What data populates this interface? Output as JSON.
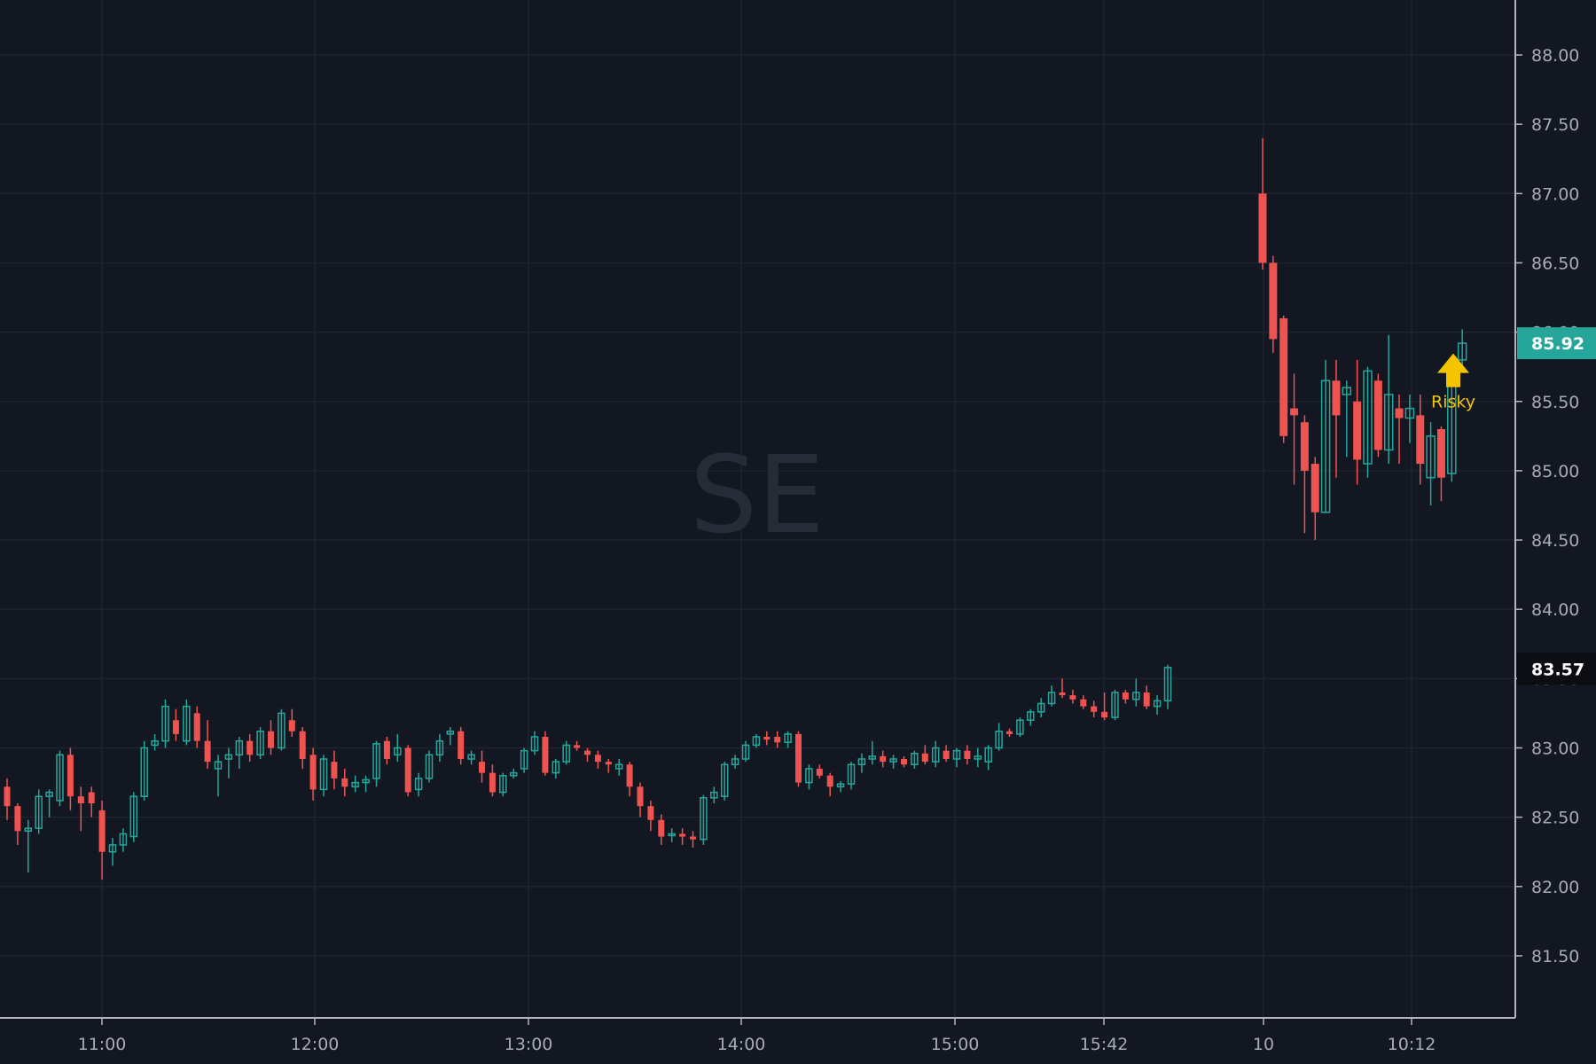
{
  "symbol_watermark": "SE",
  "colors": {
    "background": "#131722",
    "grid": "#1e2330",
    "axis_line": "#b2b5be",
    "axis_text": "#a8acb6",
    "up": "#26a69a",
    "down": "#ef5350",
    "watermark": "#262b38",
    "marker": "#f5c400"
  },
  "price_scale": {
    "labels": [
      "88.00",
      "87.50",
      "87.00",
      "86.50",
      "86.00",
      "85.50",
      "85.00",
      "84.50",
      "84.00",
      "83.50",
      "83.00",
      "82.50",
      "82.00",
      "81.50"
    ]
  },
  "time_scale": {
    "labels": [
      "11:00",
      "12:00",
      "13:00",
      "14:00",
      "15:00",
      "15:42",
      "10",
      "10:12"
    ]
  },
  "price_badges": [
    {
      "value": "85.92",
      "price": 85.92,
      "bg": "#26a69a",
      "fg": "#ffffff"
    },
    {
      "value": "83.57",
      "price": 83.57,
      "bg": "#0b0d12",
      "fg": "#ffffff"
    }
  ],
  "signal_marker": {
    "label": "Risky",
    "direction": "up",
    "price": 85.68
  },
  "chart_data": {
    "type": "candlestick",
    "title": "",
    "y_axis": {
      "min": 81.0,
      "max": 88.3,
      "gridlines": [
        88,
        87.5,
        87,
        86.5,
        86,
        85.5,
        85,
        84.5,
        84,
        83.5,
        83,
        82.5,
        82,
        81.5
      ]
    },
    "grid": true,
    "sessions": [
      {
        "name": "day1",
        "candles": [
          [
            82.72,
            82.78,
            82.48,
            82.58
          ],
          [
            82.58,
            82.6,
            82.3,
            82.4
          ],
          [
            82.4,
            82.48,
            82.1,
            82.42
          ],
          [
            82.42,
            82.7,
            82.38,
            82.65
          ],
          [
            82.65,
            82.7,
            82.5,
            82.68
          ],
          [
            82.62,
            82.98,
            82.58,
            82.95
          ],
          [
            82.95,
            83.0,
            82.55,
            82.65
          ],
          [
            82.65,
            82.72,
            82.4,
            82.6
          ],
          [
            82.68,
            82.72,
            82.5,
            82.6
          ],
          [
            82.55,
            82.62,
            82.05,
            82.25
          ],
          [
            82.25,
            82.35,
            82.15,
            82.3
          ],
          [
            82.3,
            82.42,
            82.25,
            82.38
          ],
          [
            82.36,
            82.68,
            82.32,
            82.65
          ],
          [
            82.65,
            83.05,
            82.62,
            83.0
          ],
          [
            83.02,
            83.1,
            82.98,
            83.05
          ],
          [
            83.05,
            83.35,
            83.0,
            83.3
          ],
          [
            83.2,
            83.28,
            83.05,
            83.1
          ],
          [
            83.05,
            83.35,
            83.02,
            83.3
          ],
          [
            83.25,
            83.3,
            83.0,
            83.05
          ],
          [
            83.05,
            83.2,
            82.85,
            82.9
          ],
          [
            82.85,
            82.95,
            82.65,
            82.9
          ],
          [
            82.92,
            83.0,
            82.78,
            82.95
          ],
          [
            82.95,
            83.08,
            82.85,
            83.05
          ],
          [
            83.05,
            83.1,
            82.9,
            82.95
          ],
          [
            82.95,
            83.15,
            82.92,
            83.12
          ],
          [
            83.12,
            83.2,
            82.95,
            83.0
          ],
          [
            83.0,
            83.28,
            82.98,
            83.25
          ],
          [
            83.2,
            83.28,
            83.08,
            83.12
          ],
          [
            83.12,
            83.15,
            82.85,
            82.92
          ],
          [
            82.95,
            83.0,
            82.62,
            82.7
          ],
          [
            82.7,
            82.95,
            82.65,
            82.92
          ],
          [
            82.9,
            82.98,
            82.7,
            82.78
          ],
          [
            82.78,
            82.85,
            82.65,
            82.72
          ],
          [
            82.72,
            82.8,
            82.68,
            82.75
          ],
          [
            82.75,
            82.8,
            82.68,
            82.77
          ],
          [
            82.78,
            83.05,
            82.72,
            83.03
          ],
          [
            83.05,
            83.08,
            82.88,
            82.92
          ],
          [
            82.95,
            83.1,
            82.9,
            83.0
          ],
          [
            83.0,
            83.02,
            82.65,
            82.68
          ],
          [
            82.7,
            82.82,
            82.65,
            82.78
          ],
          [
            82.78,
            82.98,
            82.75,
            82.95
          ],
          [
            82.95,
            83.1,
            82.9,
            83.05
          ],
          [
            83.1,
            83.15,
            83.02,
            83.12
          ],
          [
            83.12,
            83.15,
            82.88,
            82.92
          ],
          [
            82.92,
            82.98,
            82.88,
            82.95
          ],
          [
            82.9,
            82.98,
            82.75,
            82.82
          ],
          [
            82.82,
            82.88,
            82.65,
            82.68
          ],
          [
            82.68,
            82.82,
            82.65,
            82.8
          ],
          [
            82.8,
            82.85,
            82.78,
            82.82
          ],
          [
            82.85,
            83.0,
            82.82,
            82.98
          ],
          [
            82.98,
            83.12,
            82.95,
            83.08
          ],
          [
            83.08,
            83.12,
            82.8,
            82.82
          ],
          [
            82.82,
            82.92,
            82.78,
            82.9
          ],
          [
            82.9,
            83.05,
            82.88,
            83.02
          ],
          [
            83.02,
            83.05,
            82.98,
            83.0
          ],
          [
            82.98,
            83.0,
            82.9,
            82.95
          ],
          [
            82.95,
            82.98,
            82.85,
            82.9
          ],
          [
            82.9,
            82.92,
            82.82,
            82.88
          ],
          [
            82.85,
            82.92,
            82.8,
            82.88
          ],
          [
            82.88,
            82.9,
            82.65,
            82.72
          ],
          [
            82.72,
            82.75,
            82.5,
            82.58
          ],
          [
            82.58,
            82.62,
            82.4,
            82.48
          ],
          [
            82.48,
            82.52,
            82.3,
            82.36
          ],
          [
            82.38,
            82.42,
            82.32,
            82.38
          ],
          [
            82.38,
            82.42,
            82.3,
            82.36
          ],
          [
            82.36,
            82.4,
            82.28,
            82.34
          ],
          [
            82.34,
            82.66,
            82.3,
            82.64
          ],
          [
            82.64,
            82.72,
            82.6,
            82.68
          ],
          [
            82.65,
            82.9,
            82.62,
            82.88
          ],
          [
            82.88,
            82.95,
            82.85,
            82.92
          ],
          [
            82.92,
            83.05,
            82.9,
            83.02
          ],
          [
            83.02,
            83.1,
            83.0,
            83.08
          ],
          [
            83.08,
            83.12,
            83.02,
            83.06
          ],
          [
            83.08,
            83.12,
            83.0,
            83.04
          ],
          [
            83.04,
            83.12,
            83.0,
            83.1
          ],
          [
            83.1,
            83.12,
            82.72,
            82.75
          ],
          [
            82.75,
            82.88,
            82.7,
            82.85
          ],
          [
            82.85,
            82.88,
            82.78,
            82.8
          ],
          [
            82.8,
            82.82,
            82.65,
            82.72
          ],
          [
            82.72,
            82.76,
            82.68,
            82.74
          ],
          [
            82.74,
            82.9,
            82.7,
            82.88
          ],
          [
            82.88,
            82.96,
            82.82,
            82.92
          ],
          [
            82.92,
            83.05,
            82.88,
            82.94
          ],
          [
            82.94,
            82.98,
            82.86,
            82.9
          ],
          [
            82.9,
            82.95,
            82.85,
            82.92
          ],
          [
            82.92,
            82.94,
            82.86,
            82.88
          ],
          [
            82.88,
            82.98,
            82.85,
            82.96
          ],
          [
            82.96,
            83.02,
            82.88,
            82.9
          ],
          [
            82.9,
            83.05,
            82.86,
            83.0
          ],
          [
            82.98,
            83.02,
            82.9,
            82.92
          ],
          [
            82.92,
            83.0,
            82.86,
            82.98
          ],
          [
            82.98,
            83.02,
            82.88,
            82.92
          ],
          [
            82.92,
            83.0,
            82.86,
            82.94
          ],
          [
            82.9,
            83.02,
            82.84,
            83.0
          ],
          [
            83.0,
            83.18,
            82.98,
            83.12
          ],
          [
            83.12,
            83.14,
            83.08,
            83.1
          ],
          [
            83.1,
            83.22,
            83.08,
            83.2
          ],
          [
            83.2,
            83.28,
            83.16,
            83.26
          ],
          [
            83.26,
            83.36,
            83.22,
            83.32
          ],
          [
            83.32,
            83.45,
            83.3,
            83.4
          ],
          [
            83.4,
            83.5,
            83.36,
            83.38
          ],
          [
            83.38,
            83.42,
            83.32,
            83.35
          ],
          [
            83.35,
            83.38,
            83.28,
            83.3
          ],
          [
            83.3,
            83.34,
            83.22,
            83.26
          ],
          [
            83.26,
            83.4,
            83.2,
            83.22
          ],
          [
            83.22,
            83.42,
            83.2,
            83.4
          ],
          [
            83.4,
            83.42,
            83.32,
            83.35
          ],
          [
            83.35,
            83.5,
            83.3,
            83.4
          ],
          [
            83.4,
            83.45,
            83.28,
            83.3
          ],
          [
            83.3,
            83.38,
            83.24,
            83.34
          ],
          [
            83.34,
            83.6,
            83.28,
            83.58
          ]
        ]
      },
      {
        "name": "day2",
        "candles": [
          [
            87.0,
            87.4,
            86.45,
            86.5
          ],
          [
            86.5,
            86.55,
            85.85,
            85.95
          ],
          [
            86.1,
            86.12,
            85.2,
            85.25
          ],
          [
            85.45,
            85.7,
            84.9,
            85.4
          ],
          [
            85.35,
            85.4,
            84.55,
            85.0
          ],
          [
            85.05,
            85.1,
            84.5,
            84.7
          ],
          [
            84.7,
            85.8,
            84.7,
            85.65
          ],
          [
            85.65,
            85.8,
            84.95,
            85.4
          ],
          [
            85.55,
            85.65,
            85.1,
            85.6
          ],
          [
            85.5,
            85.8,
            84.9,
            85.08
          ],
          [
            85.05,
            85.75,
            84.95,
            85.72
          ],
          [
            85.65,
            85.7,
            85.1,
            85.15
          ],
          [
            85.15,
            85.98,
            85.05,
            85.55
          ],
          [
            85.45,
            85.55,
            85.05,
            85.38
          ],
          [
            85.38,
            85.55,
            85.2,
            85.45
          ],
          [
            85.4,
            85.55,
            84.9,
            85.05
          ],
          [
            84.95,
            85.35,
            84.75,
            85.25
          ],
          [
            85.3,
            85.32,
            84.78,
            84.95
          ],
          [
            84.98,
            85.75,
            84.92,
            85.72
          ],
          [
            85.8,
            86.02,
            85.75,
            85.92
          ]
        ]
      }
    ]
  }
}
